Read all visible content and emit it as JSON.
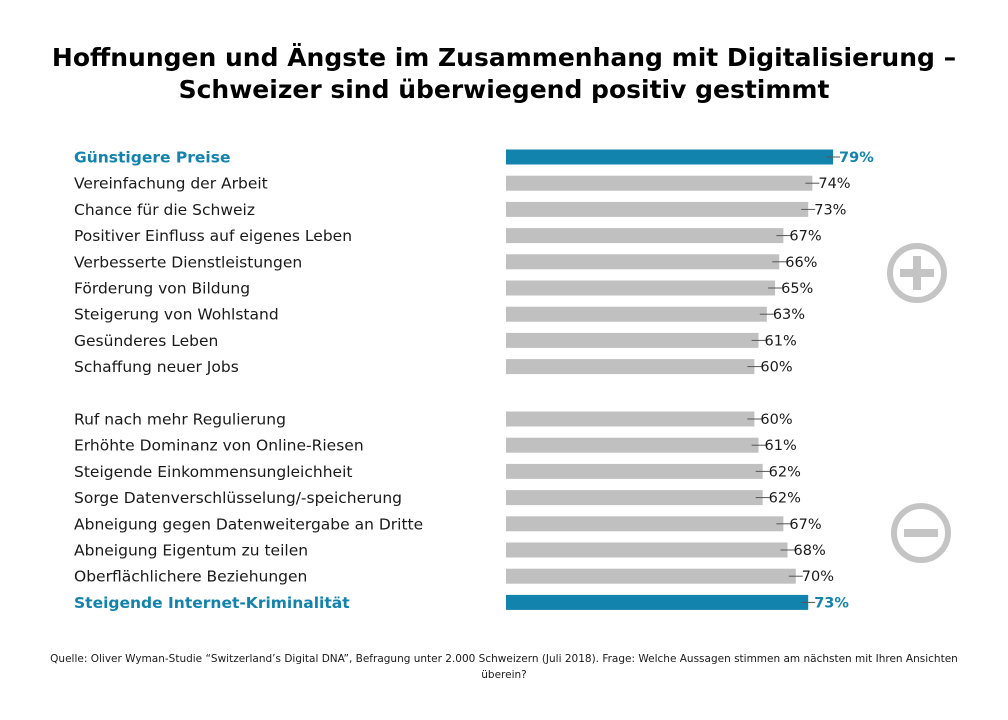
{
  "title_lines": [
    "Hoffnungen und Ängste im Zusammenhang mit Digitalisierung –",
    "Schweizer sind überwiegend positiv gestimmt"
  ],
  "source": "Quelle: Oliver Wyman-Studie “Switzerland’s Digital DNA”, Befragung unter 2.000 Schweizern (Juli 2018). Frage: Welche Aussagen stimmen am nächsten mit Ihren Ansichten überein?",
  "icons": {
    "positive": "plus-circle-icon",
    "negative": "minus-circle-icon"
  },
  "colors": {
    "highlight": "#1283ad",
    "bar": "#c0c0c0",
    "icon": "#c4c4c4"
  },
  "chart_data": {
    "type": "bar",
    "orientation": "horizontal",
    "unit": "%",
    "xlim": [
      0,
      100
    ],
    "grid": false,
    "groups": [
      {
        "sign": "positive",
        "items": [
          {
            "label": "Günstigere Preise",
            "value": 79,
            "display": "79%",
            "highlight": true
          },
          {
            "label": "Vereinfachung der Arbeit",
            "value": 74,
            "display": "74%",
            "highlight": false
          },
          {
            "label": "Chance für die Schweiz",
            "value": 73,
            "display": "73%",
            "highlight": false
          },
          {
            "label": "Positiver Einfluss auf eigenes Leben",
            "value": 67,
            "display": "67%",
            "highlight": false
          },
          {
            "label": "Verbesserte Dienstleistungen",
            "value": 66,
            "display": "66%",
            "highlight": false
          },
          {
            "label": "Förderung von Bildung",
            "value": 65,
            "display": "65%",
            "highlight": false
          },
          {
            "label": "Steigerung von Wohlstand",
            "value": 63,
            "display": "63%",
            "highlight": false
          },
          {
            "label": "Gesünderes Leben",
            "value": 61,
            "display": "61%",
            "highlight": false
          },
          {
            "label": "Schaffung neuer Jobs",
            "value": 60,
            "display": "60%",
            "highlight": false
          }
        ]
      },
      {
        "sign": "negative",
        "items": [
          {
            "label": "Ruf nach mehr Regulierung",
            "value": 60,
            "display": "60%",
            "highlight": false
          },
          {
            "label": "Erhöhte Dominanz von Online-Riesen",
            "value": 61,
            "display": "61%",
            "highlight": false
          },
          {
            "label": "Steigende Einkommensungleichheit",
            "value": 62,
            "display": "62%",
            "highlight": false
          },
          {
            "label": "Sorge Datenverschlüsselung/-speicherung",
            "value": 62,
            "display": "62%",
            "highlight": false
          },
          {
            "label": "Abneigung gegen Datenweitergabe an Dritte",
            "value": 67,
            "display": "67%",
            "highlight": false
          },
          {
            "label": "Abneigung Eigentum zu teilen",
            "value": 68,
            "display": "68%",
            "highlight": false
          },
          {
            "label": "Oberflächlichere Beziehungen",
            "value": 70,
            "display": "70%",
            "highlight": false
          },
          {
            "label": "Steigende Internet-Kriminalität",
            "value": 73,
            "display": "73%",
            "highlight": true
          }
        ]
      }
    ]
  }
}
